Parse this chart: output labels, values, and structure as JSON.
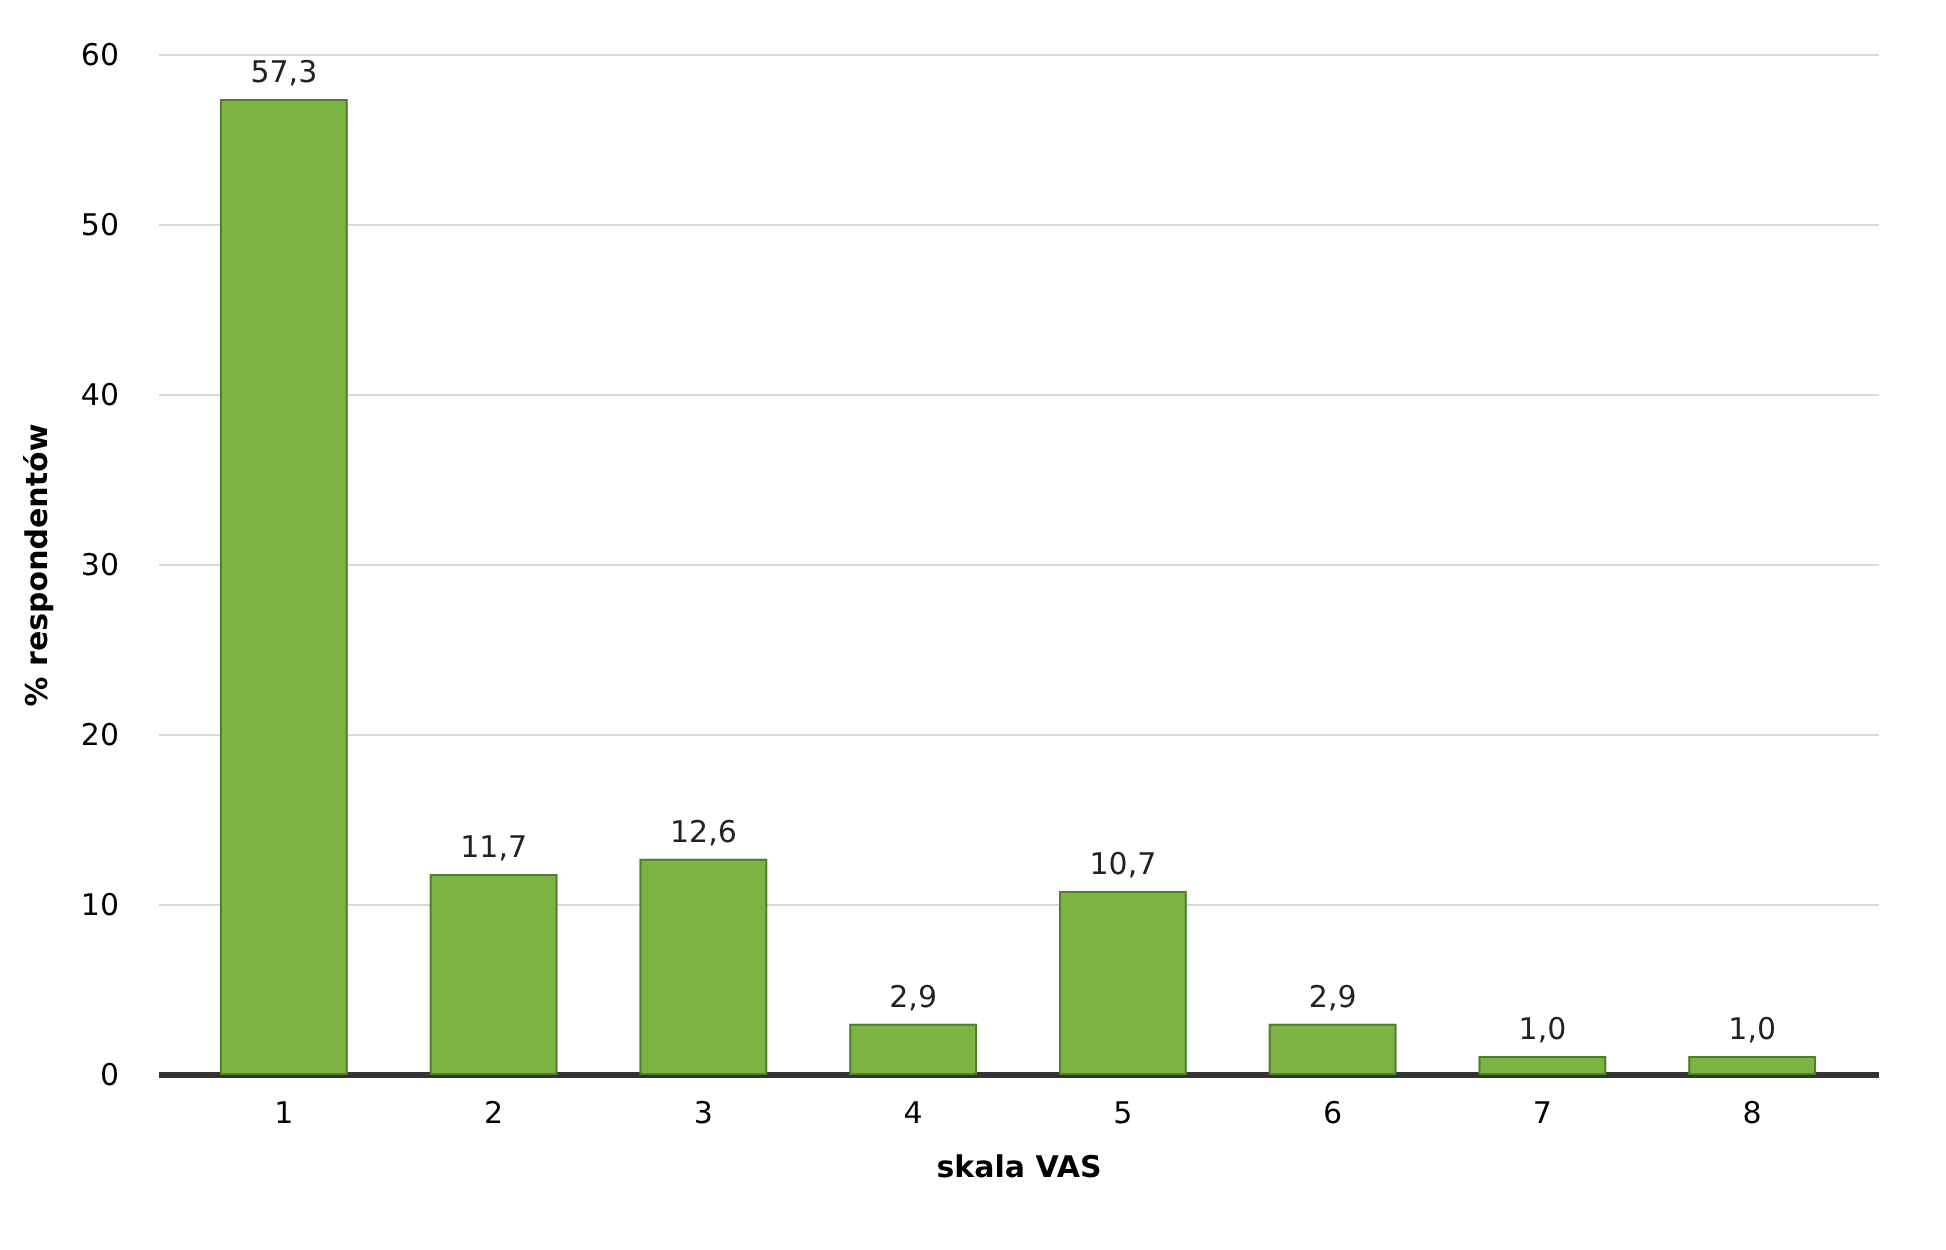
{
  "chart_data": {
    "type": "bar",
    "xlabel": "skala VAS",
    "ylabel": "% respondentów",
    "categories": [
      "1",
      "2",
      "3",
      "4",
      "5",
      "6",
      "7",
      "8"
    ],
    "values": [
      57.3,
      11.7,
      12.6,
      2.9,
      10.7,
      2.9,
      1.0,
      1.0
    ],
    "value_labels": [
      "57,3",
      "11,7",
      "12,6",
      "2,9",
      "10,7",
      "2,9",
      "1,0",
      "1,0"
    ],
    "color": "#7cb342",
    "ylim": [
      0,
      60
    ],
    "yticks": [
      0,
      10,
      20,
      30,
      40,
      50,
      60
    ],
    "grid": "y"
  }
}
